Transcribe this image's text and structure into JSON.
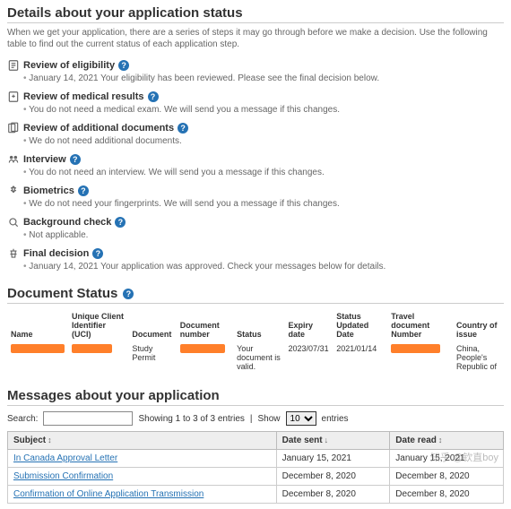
{
  "details": {
    "heading": "Details about your application status",
    "intro": "When we get your application, there are a series of steps it may go through before we make a decision. Use the following table to find out the current status of each application step."
  },
  "steps": [
    {
      "title": "Review of eligibility",
      "body": "January 14, 2021 Your eligibility has been reviewed. Please see the final decision below."
    },
    {
      "title": "Review of medical results",
      "body": "You do not need a medical exam. We will send you a message if this changes."
    },
    {
      "title": "Review of additional documents",
      "body": "We do not need additional documents."
    },
    {
      "title": "Interview",
      "body": "You do not need an interview. We will send you a message if this changes."
    },
    {
      "title": "Biometrics",
      "body": "We do not need your fingerprints. We will send you a message if this changes."
    },
    {
      "title": "Background check",
      "body": "Not applicable."
    },
    {
      "title": "Final decision",
      "body": "January 14, 2021 Your application was approved. Check your messages below for details."
    }
  ],
  "docStatus": {
    "heading": "Document Status",
    "headers": {
      "name": "Name",
      "uci": "Unique Client Identifier (UCI)",
      "document": "Document",
      "docnum": "Document number",
      "status": "Status",
      "expiry": "Expiry date",
      "updated": "Status Updated Date",
      "travel": "Travel document Number",
      "country": "Country of issue"
    },
    "row": {
      "document": "Study Permit",
      "status": "Your document is valid.",
      "expiry": "2023/07/31",
      "updated": "2021/01/14",
      "country": "China, People's Republic of"
    }
  },
  "messages": {
    "heading": "Messages about your application",
    "searchLabel": "Search:",
    "showing": "Showing 1 to 3 of 3 entries",
    "showPrefix": "Show",
    "showValue": "10",
    "showSuffix": "entries",
    "headers": {
      "subject": "Subject",
      "sent": "Date sent",
      "read": "Date read"
    },
    "rows": [
      {
        "subject": "In Canada Approval Letter",
        "sent": "January 15, 2021",
        "read": "January 15, 2021"
      },
      {
        "subject": "Submission Confirmation",
        "sent": "December 8, 2020",
        "read": "December 8, 2020"
      },
      {
        "subject": "Confirmation of Online Application Transmission",
        "sent": "December 8, 2020",
        "read": "December 8, 2020"
      }
    ]
  },
  "watermark": "知乎 @钦直boy"
}
